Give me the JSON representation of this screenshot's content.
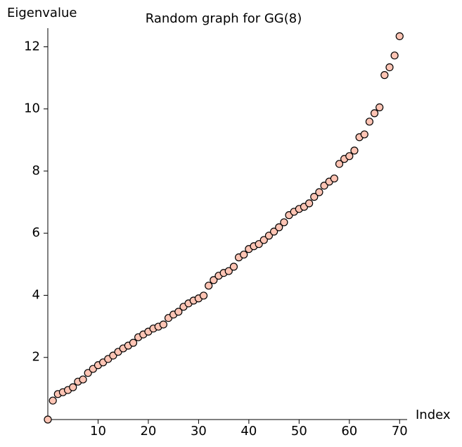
{
  "chart_data": {
    "type": "scatter",
    "title": "Random graph for GG(8)",
    "x_label": "Index",
    "y_label": "Eigenvalue",
    "color": "#ffc4b4",
    "edge_color": "#000000",
    "x": [
      0,
      1,
      2,
      3,
      4,
      5,
      6,
      7,
      8,
      9,
      10,
      11,
      12,
      13,
      14,
      15,
      16,
      17,
      18,
      19,
      20,
      21,
      22,
      23,
      24,
      25,
      26,
      27,
      28,
      29,
      30,
      31,
      32,
      33,
      34,
      35,
      36,
      37,
      38,
      39,
      40,
      41,
      42,
      43,
      44,
      45,
      46,
      47,
      48,
      49,
      50,
      51,
      52,
      53,
      54,
      55,
      56,
      57,
      58,
      59,
      60,
      61,
      62,
      63,
      64,
      65,
      66,
      67,
      68,
      69,
      70
    ],
    "values": [
      0,
      0.61,
      0.82,
      0.88,
      0.95,
      1.04,
      1.22,
      1.29,
      1.5,
      1.63,
      1.75,
      1.84,
      1.95,
      2.06,
      2.18,
      2.29,
      2.38,
      2.47,
      2.65,
      2.74,
      2.83,
      2.93,
      2.99,
      3.06,
      3.27,
      3.38,
      3.47,
      3.63,
      3.74,
      3.83,
      3.9,
      3.99,
      4.31,
      4.49,
      4.63,
      4.72,
      4.78,
      4.92,
      5.22,
      5.31,
      5.49,
      5.58,
      5.65,
      5.78,
      5.92,
      6.05,
      6.19,
      6.35,
      6.58,
      6.69,
      6.78,
      6.85,
      6.96,
      7.17,
      7.32,
      7.53,
      7.66,
      7.76,
      8.23,
      8.39,
      8.48,
      8.66,
      9.09,
      9.18,
      9.59,
      9.86,
      10.05,
      11.09,
      11.34,
      11.72,
      12.34
    ],
    "xlim": [
      0,
      71.5
    ],
    "ylim": [
      0,
      12.6
    ],
    "xticks": [
      10,
      20,
      30,
      40,
      50,
      60,
      70
    ],
    "yticks": [
      2,
      4,
      6,
      8,
      10,
      12
    ]
  }
}
